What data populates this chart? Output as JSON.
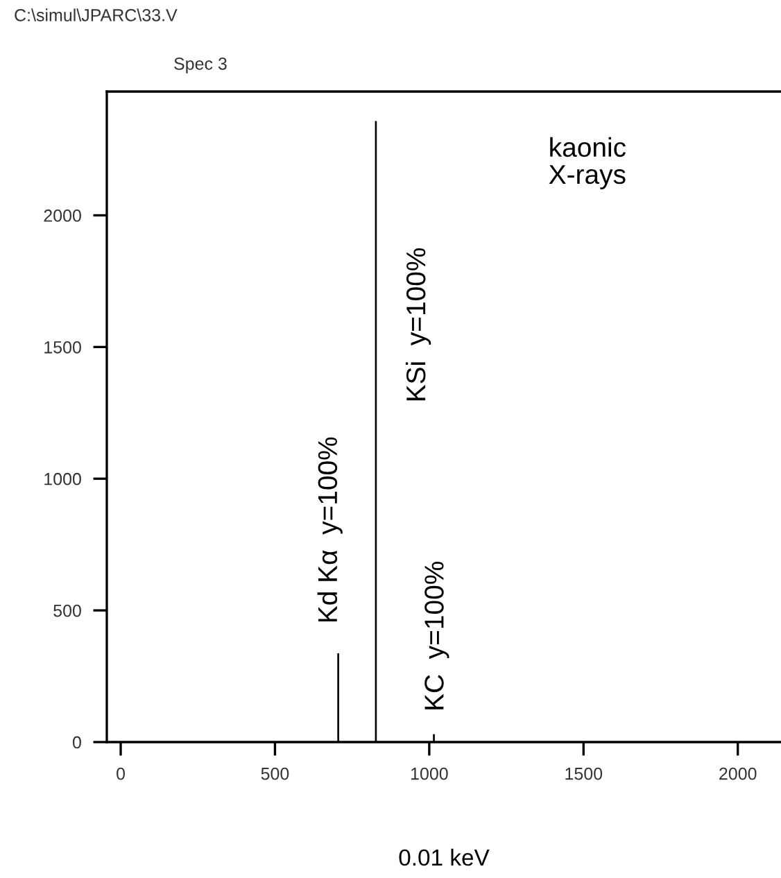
{
  "chart_data": {
    "type": "bar",
    "title": "C:\\simul\\JPARC\\33.V",
    "subtitle": "Spec 3",
    "xlabel": "0.01 keV",
    "x": [
      705,
      827,
      1015
    ],
    "values": [
      337,
      2358,
      30
    ],
    "color": "#000000",
    "xlim": [
      -45,
      2140
    ],
    "ylim": [
      0,
      2470
    ],
    "xticks": [
      0,
      500,
      1000,
      1500,
      2000
    ],
    "yticks": [
      0,
      500,
      1000,
      1500,
      2000
    ],
    "grid": false,
    "annotations": [
      "Kd Kα  y=100%",
      "KSi  y=100%",
      "KC  y=100%",
      "kaonic\nX-rays"
    ]
  }
}
